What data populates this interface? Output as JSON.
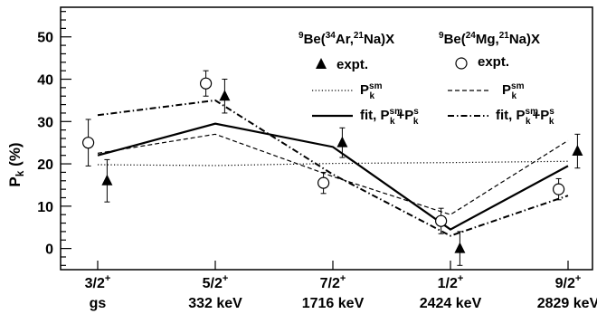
{
  "chart_data": {
    "type": "line",
    "ylabel_main": "P",
    "ylabel_sub": "k",
    "ylabel_unit": " (%)",
    "ylim": [
      -5,
      57
    ],
    "yticks": [
      0,
      10,
      20,
      30,
      40,
      50
    ],
    "grid": false,
    "categories": [
      {
        "top": "3/2",
        "sup": "+",
        "bottom": "gs"
      },
      {
        "top": "5/2",
        "sup": "+",
        "bottom": "332 keV"
      },
      {
        "top": "7/2",
        "sup": "+",
        "bottom": "1716 keV"
      },
      {
        "top": "1/2",
        "sup": "+",
        "bottom": "2424 keV"
      },
      {
        "top": "9/2",
        "sup": "+",
        "bottom": "2829 keV"
      }
    ],
    "legend": {
      "placement": "top-right",
      "ar_header": {
        "a": "9",
        "b": "Be(",
        "c": "34",
        "d": "Ar,",
        "e": "21",
        "f": "Na)X"
      },
      "mg_header": {
        "a": "9",
        "b": "Be(",
        "c": "24",
        "d": "Mg,",
        "e": "21",
        "f": "Na)X"
      },
      "expt": "expt.",
      "sm_main": "P",
      "sm_sub": "k",
      "sm_sup": "sm",
      "fit_prefix": "fit, ",
      "fit_main1": "P",
      "fit_sub1": "k",
      "fit_sup1": "sm",
      "fit_plus": "+P",
      "fit_sub2": "k",
      "fit_sup2": "s"
    },
    "series": [
      {
        "key": "ar_expt",
        "marker": "triangle",
        "x": [
          0.08,
          1.08,
          2.08,
          3.08,
          4.08
        ],
        "y": [
          16,
          36,
          25,
          0,
          23
        ],
        "err": [
          5,
          4,
          3.5,
          4,
          4
        ]
      },
      {
        "key": "mg_expt",
        "marker": "circle",
        "x": [
          -0.08,
          0.92,
          1.92,
          2.92,
          3.92
        ],
        "y": [
          25,
          39,
          15.5,
          6.5,
          14
        ],
        "err": [
          5.5,
          3,
          2.5,
          3,
          2.5
        ]
      },
      {
        "key": "ar_sm",
        "style": "dotted",
        "x": [
          0,
          1,
          2,
          3,
          4
        ],
        "y": [
          19.8,
          19.6,
          20.1,
          20.3,
          20.6
        ]
      },
      {
        "key": "mg_sm",
        "style": "dashed",
        "x": [
          0,
          1,
          2,
          3,
          4
        ],
        "y": [
          22.5,
          27,
          17,
          8,
          25.5
        ]
      },
      {
        "key": "ar_fit",
        "style": "solid",
        "x": [
          0,
          1,
          2,
          3,
          4
        ],
        "y": [
          22,
          29.5,
          24,
          4.5,
          19.5
        ]
      },
      {
        "key": "mg_fit",
        "style": "dashdot",
        "x": [
          0,
          1,
          2,
          3,
          4
        ],
        "y": [
          31.5,
          35,
          17.5,
          3,
          12.5
        ]
      }
    ]
  }
}
